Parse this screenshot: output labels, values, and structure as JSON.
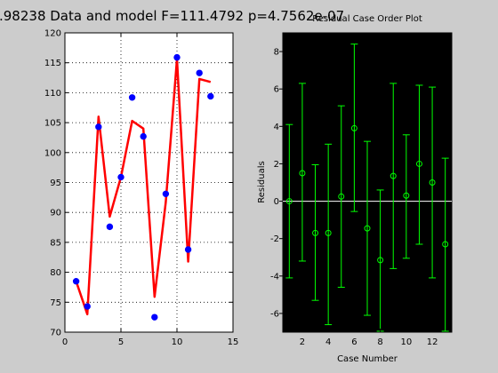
{
  "chart_data": [
    {
      "type": "scatter",
      "title": ".98238 Data and model F=111.4792 p=4.7562e-07",
      "xlim": [
        0,
        15
      ],
      "ylim": [
        70,
        120
      ],
      "xticks": [
        "0",
        "5",
        "10",
        "15"
      ],
      "yticks": [
        "70",
        "75",
        "80",
        "85",
        "90",
        "95",
        "100",
        "105",
        "110",
        "115",
        "120"
      ],
      "grid": true,
      "colors": {
        "data": "#0000ff",
        "model": "#ff0000",
        "background": "#ffffff"
      },
      "series": [
        {
          "kind": "points",
          "x": [
            1,
            2,
            3,
            4,
            5,
            6,
            7,
            8,
            9,
            10,
            11,
            12,
            13
          ],
          "y": [
            78.5,
            74.3,
            104.3,
            87.6,
            95.9,
            109.2,
            102.7,
            72.5,
            93.1,
            115.9,
            83.8,
            113.3,
            109.4
          ]
        },
        {
          "kind": "line",
          "x": [
            1,
            2,
            3,
            4,
            5,
            6,
            7,
            8,
            9,
            10,
            11,
            12,
            13
          ],
          "y": [
            78.5,
            73.0,
            106.0,
            89.3,
            95.9,
            105.3,
            104.0,
            75.9,
            91.7,
            115.6,
            81.8,
            112.3,
            111.8
          ]
        }
      ]
    },
    {
      "type": "errorbar",
      "title": "Residual Case Order Plot",
      "xlabel": "Case Number",
      "ylabel": "Residuals",
      "xlim": [
        0.5,
        13.5
      ],
      "ylim": [
        -7,
        9
      ],
      "xticks": [
        "2",
        "4",
        "6",
        "8",
        "10",
        "12"
      ],
      "yticks": [
        "-6",
        "-4",
        "-2",
        "0",
        "2",
        "4",
        "6",
        "8"
      ],
      "grid": false,
      "colors": {
        "bars": "#00ff00",
        "zero": "#ffffff",
        "background": "#000000"
      },
      "x": [
        1,
        2,
        3,
        4,
        5,
        6,
        7,
        8,
        9,
        10,
        11,
        12,
        13
      ],
      "residual": [
        0.0,
        1.5,
        -1.7,
        -1.7,
        0.25,
        3.9,
        -1.45,
        -3.15,
        1.35,
        0.3,
        2.0,
        1.0,
        -2.3
      ],
      "lower": [
        -4.1,
        -3.2,
        -5.3,
        -6.6,
        -4.6,
        -0.55,
        -6.1,
        -6.95,
        -3.6,
        -3.05,
        -2.3,
        -4.1,
        -6.95
      ],
      "upper": [
        4.1,
        6.3,
        1.95,
        3.05,
        5.1,
        8.4,
        3.2,
        0.6,
        6.3,
        3.55,
        6.2,
        6.1,
        2.3
      ]
    }
  ]
}
